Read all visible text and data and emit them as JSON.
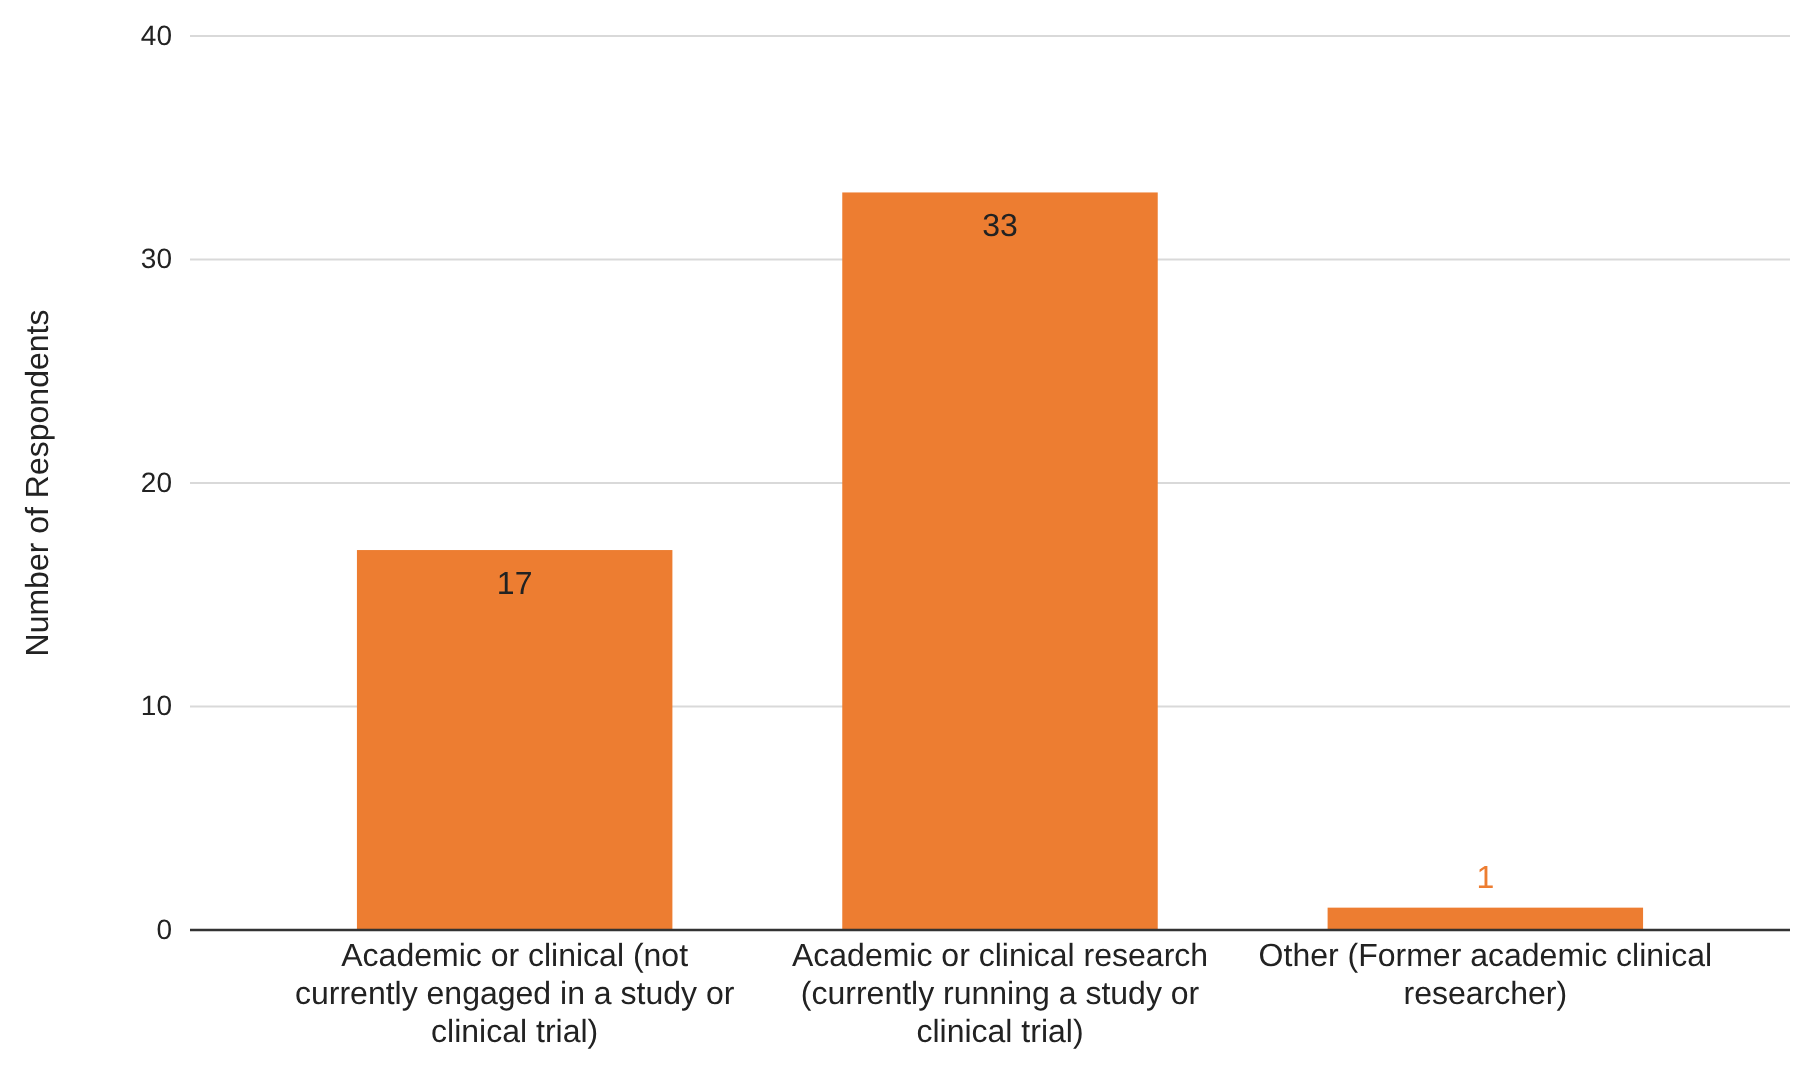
{
  "chart_data": {
    "type": "bar",
    "ylabel": "Number of Respondents",
    "categories": [
      "Academic or clinical (not currently engaged in a study or clinical trial)",
      "Academic or clinical research (currently running a study or clinical trial)",
      "Other (Former academic clinical researcher)"
    ],
    "values": [
      17,
      33,
      1
    ],
    "color": "#ed7d31",
    "ylim": [
      0,
      40
    ],
    "yticks": [
      0,
      10,
      20,
      30,
      40
    ],
    "grid": "y",
    "data_labels": true
  }
}
